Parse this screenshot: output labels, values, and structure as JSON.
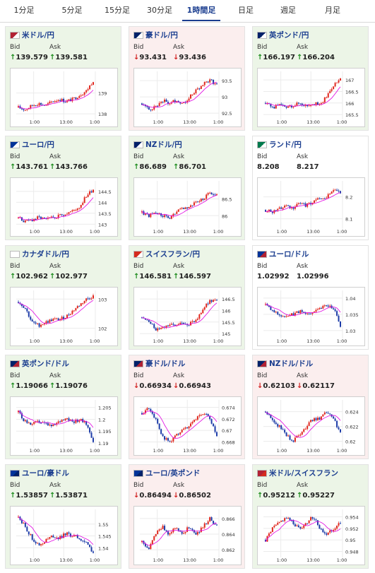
{
  "tabs": [
    {
      "label": "1分足",
      "active": false
    },
    {
      "label": "5分足",
      "active": false
    },
    {
      "label": "15分足",
      "active": false
    },
    {
      "label": "30分足",
      "active": false
    },
    {
      "label": "1時間足",
      "active": true
    },
    {
      "label": "日足",
      "active": false
    },
    {
      "label": "週足",
      "active": false
    },
    {
      "label": "月足",
      "active": false
    }
  ],
  "colors": {
    "up_bg": "#ecf5e7",
    "down_bg": "#fbeeee",
    "candle_up": "#e0261d",
    "candle_down": "#1d3ca8",
    "ma_line": "#e000e0",
    "pair_text": "#1a3d8f"
  },
  "cards": [
    {
      "pair": "米ドル/円",
      "flag": "us-jp-flag-icon",
      "trend": "up",
      "bid_label": "Bid",
      "ask_label": "Ask",
      "bid": "139.579",
      "ask": "139.581",
      "chart": {
        "type": "candlestick",
        "x_ticks": [
          "1:00",
          "13:00",
          "1:00"
        ],
        "y_ticks": [
          "139",
          "138"
        ],
        "y_range": [
          137.8,
          139.9
        ],
        "trend": [
          138.3,
          138.2,
          138.4,
          138.5,
          138.4,
          138.6,
          138.7,
          138.6,
          138.7,
          138.9,
          139.1,
          139.6
        ]
      }
    },
    {
      "pair": "豪ドル/円",
      "flag": "au-jp-flag-icon",
      "trend": "down",
      "bid_label": "Bid",
      "ask_label": "Ask",
      "bid": "93.431",
      "ask": "93.436",
      "chart": {
        "type": "candlestick",
        "x_ticks": [
          "1:00",
          "13:00",
          "1:00"
        ],
        "y_ticks": [
          "93.5",
          "93",
          "92.5"
        ],
        "y_range": [
          92.35,
          93.7
        ],
        "trend": [
          92.8,
          92.6,
          92.7,
          92.9,
          92.8,
          92.9,
          92.8,
          93.0,
          93.2,
          93.4,
          93.5,
          93.4
        ]
      }
    },
    {
      "pair": "英ポンド/円",
      "flag": "gb-jp-flag-icon",
      "trend": "up",
      "bid_label": "Bid",
      "ask_label": "Ask",
      "bid": "166.197",
      "ask": "166.204",
      "chart": {
        "type": "candlestick",
        "x_ticks": [
          "1:00",
          "13:00",
          "1:00"
        ],
        "y_ticks": [
          "167",
          "166.5",
          "166",
          "165.5"
        ],
        "y_range": [
          165.35,
          167.25
        ],
        "trend": [
          166.0,
          165.8,
          165.9,
          165.8,
          165.9,
          166.0,
          165.9,
          166.0,
          165.9,
          166.3,
          166.8,
          167.0
        ]
      }
    },
    {
      "pair": "ユーロ/円",
      "flag": "eu-jp-flag-icon",
      "trend": "up",
      "bid_label": "Bid",
      "ask_label": "Ask",
      "bid": "143.761",
      "ask": "143.766",
      "chart": {
        "type": "candlestick",
        "x_ticks": [
          "1:00",
          "13:00",
          "1:00"
        ],
        "y_ticks": [
          "144.5",
          "144",
          "143.5",
          "143"
        ],
        "y_range": [
          142.85,
          144.85
        ],
        "trend": [
          143.3,
          143.1,
          143.2,
          143.3,
          143.2,
          143.3,
          143.4,
          143.5,
          143.6,
          143.8,
          144.3,
          144.6
        ]
      }
    },
    {
      "pair": "NZドル/円",
      "flag": "nz-jp-flag-icon",
      "trend": "up",
      "bid_label": "Bid",
      "ask_label": "Ask",
      "bid": "86.689",
      "ask": "86.701",
      "chart": {
        "type": "candlestick",
        "x_ticks": [
          "1:00",
          "13:00",
          "1:00"
        ],
        "y_ticks": [
          "86.5",
          "86"
        ],
        "y_range": [
          85.65,
          86.95
        ],
        "trend": [
          86.1,
          86.0,
          86.1,
          86.0,
          85.9,
          86.1,
          86.2,
          86.3,
          86.4,
          86.5,
          86.7,
          86.6
        ]
      }
    },
    {
      "pair": "ランド/円",
      "flag": "za-jp-flag-icon",
      "trend": "none",
      "bid_label": "Bid",
      "ask_label": "Ask",
      "bid": "8.208",
      "ask": "8.217",
      "chart": {
        "type": "candlestick",
        "x_ticks": [
          "1:00",
          "13:00",
          "1:00"
        ],
        "y_ticks": [
          "8.2",
          "8.1"
        ],
        "y_range": [
          8.06,
          8.26
        ],
        "trend": [
          8.14,
          8.13,
          8.15,
          8.16,
          8.15,
          8.17,
          8.16,
          8.18,
          8.19,
          8.2,
          8.23,
          8.22
        ]
      }
    },
    {
      "pair": "カナダドル/円",
      "flag": "ca-jp-flag-icon",
      "trend": "up",
      "bid_label": "Bid",
      "ask_label": "Ask",
      "bid": "102.962",
      "ask": "102.977",
      "chart": {
        "type": "candlestick",
        "x_ticks": [
          "1:00",
          "13:00",
          "1:00"
        ],
        "y_ticks": [
          "103",
          "102"
        ],
        "y_range": [
          101.7,
          103.2
        ],
        "trend": [
          102.9,
          102.7,
          102.2,
          102.1,
          102.2,
          102.3,
          102.3,
          102.4,
          102.6,
          102.8,
          103.0,
          103.1
        ]
      }
    },
    {
      "pair": "スイスフラン/円",
      "flag": "ch-jp-flag-icon",
      "trend": "up",
      "bid_label": "Bid",
      "ask_label": "Ask",
      "bid": "146.581",
      "ask": "146.597",
      "chart": {
        "type": "candlestick",
        "x_ticks": [
          "1:00",
          "13:00",
          "1:00"
        ],
        "y_ticks": [
          "146.5",
          "146",
          "145.5",
          "145"
        ],
        "y_range": [
          144.85,
          146.75
        ],
        "trend": [
          145.7,
          145.5,
          145.2,
          145.3,
          145.4,
          145.3,
          145.5,
          145.4,
          145.6,
          146.1,
          146.4,
          146.5
        ]
      }
    },
    {
      "pair": "ユーロ/ドル",
      "flag": "eu-us-flag-icon",
      "trend": "none",
      "bid_label": "Bid",
      "ask_label": "Ask",
      "bid": "1.02992",
      "ask": "1.02996",
      "chart": {
        "type": "candlestick",
        "x_ticks": [
          "1:00",
          "13:00",
          "1:00"
        ],
        "y_ticks": [
          "1.04",
          "1.035",
          "1.03"
        ],
        "y_range": [
          1.028,
          1.0415
        ],
        "trend": [
          1.038,
          1.036,
          1.035,
          1.034,
          1.035,
          1.036,
          1.035,
          1.036,
          1.037,
          1.038,
          1.037,
          1.031
        ]
      }
    },
    {
      "pair": "英ポンド/ドル",
      "flag": "gb-us-flag-icon",
      "trend": "up",
      "bid_label": "Bid",
      "ask_label": "Ask",
      "bid": "1.19066",
      "ask": "1.19076",
      "chart": {
        "type": "candlestick",
        "x_ticks": [
          "1:00",
          "13:00",
          "1:00"
        ],
        "y_ticks": [
          "1.205",
          "1.2",
          "1.195",
          "1.19"
        ],
        "y_range": [
          1.1885,
          1.207
        ],
        "trend": [
          1.203,
          1.199,
          1.198,
          1.199,
          1.198,
          1.197,
          1.199,
          1.201,
          1.199,
          1.2,
          1.198,
          1.191
        ]
      }
    },
    {
      "pair": "豪ドル/ドル",
      "flag": "au-us-flag-icon",
      "trend": "down",
      "bid_label": "Bid",
      "ask_label": "Ask",
      "bid": "0.66934",
      "ask": "0.66943",
      "chart": {
        "type": "candlestick",
        "x_ticks": [
          "1:00",
          "13:00",
          "1:00"
        ],
        "y_ticks": [
          "0.674",
          "0.672",
          "0.67",
          "0.668"
        ],
        "y_range": [
          0.6672,
          0.6748
        ],
        "trend": [
          0.673,
          0.674,
          0.672,
          0.669,
          0.668,
          0.669,
          0.67,
          0.671,
          0.672,
          0.673,
          0.672,
          0.669
        ]
      }
    },
    {
      "pair": "NZドル/ドル",
      "flag": "nz-us-flag-icon",
      "trend": "down",
      "bid_label": "Bid",
      "ask_label": "Ask",
      "bid": "0.62103",
      "ask": "0.62117",
      "chart": {
        "type": "candlestick",
        "x_ticks": [
          "1:00",
          "13:00",
          "1:00"
        ],
        "y_ticks": [
          "0.624",
          "0.622",
          "0.62"
        ],
        "y_range": [
          0.6193,
          0.6252
        ],
        "trend": [
          0.624,
          0.623,
          0.622,
          0.621,
          0.62,
          0.621,
          0.622,
          0.623,
          0.623,
          0.624,
          0.623,
          0.621
        ]
      }
    },
    {
      "pair": "ユーロ/豪ドル",
      "flag": "eu-au-flag-icon",
      "trend": "up",
      "bid_label": "Bid",
      "ask_label": "Ask",
      "bid": "1.53857",
      "ask": "1.53871",
      "chart": {
        "type": "candlestick",
        "x_ticks": [
          "1:00",
          "13:00",
          "1:00"
        ],
        "y_ticks": [
          "1.55",
          "1.545",
          "1.54"
        ],
        "y_range": [
          1.5365,
          1.555
        ],
        "trend": [
          1.553,
          1.549,
          1.544,
          1.541,
          1.543,
          1.545,
          1.544,
          1.546,
          1.545,
          1.544,
          1.542,
          1.538
        ]
      }
    },
    {
      "pair": "ユーロ/英ポンド",
      "flag": "eu-gb-flag-icon",
      "trend": "down",
      "bid_label": "Bid",
      "ask_label": "Ask",
      "bid": "0.86494",
      "ask": "0.86502",
      "chart": {
        "type": "candlestick",
        "x_ticks": [
          "1:00",
          "13:00",
          "1:00"
        ],
        "y_ticks": [
          "0.866",
          "0.864",
          "0.862"
        ],
        "y_range": [
          0.8612,
          0.8668
        ],
        "trend": [
          0.863,
          0.862,
          0.864,
          0.865,
          0.864,
          0.865,
          0.864,
          0.865,
          0.864,
          0.865,
          0.866,
          0.865
        ]
      }
    },
    {
      "pair": "米ドル/スイスフラン",
      "flag": "us-ch-flag-icon",
      "trend": "up",
      "bid_label": "Bid",
      "ask_label": "Ask",
      "bid": "0.95212",
      "ask": "0.95227",
      "chart": {
        "type": "candlestick",
        "x_ticks": [
          "1:00",
          "13:00",
          "1:00"
        ],
        "y_ticks": [
          "0.954",
          "0.952",
          "0.95",
          "0.948"
        ],
        "y_range": [
          0.9472,
          0.9548
        ],
        "trend": [
          0.95,
          0.952,
          0.953,
          0.954,
          0.953,
          0.952,
          0.953,
          0.954,
          0.952,
          0.951,
          0.952,
          0.953
        ]
      }
    }
  ]
}
